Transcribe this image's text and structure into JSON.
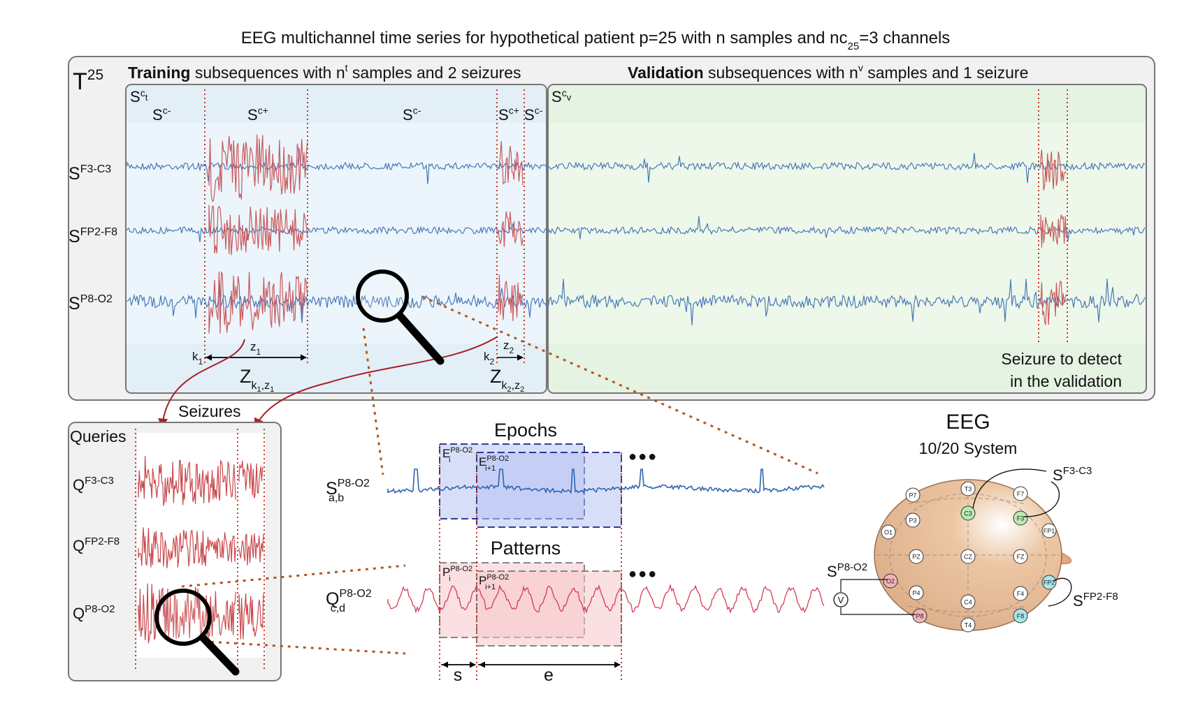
{
  "title": "EEG multichannel time series for hypothetical patient p=25 with n samples and nc",
  "title_sub": "25",
  "title_tail": "=3 channels",
  "panel_label": "T",
  "panel_label_sup": "25",
  "training": {
    "bold": "Training",
    "text": " subsequences with n",
    "sup": "t",
    "text2": " samples and 2 seizures",
    "s_label": "S",
    "s_sup": "c",
    "s_sup2": "t"
  },
  "validation": {
    "bold": "Validation",
    "text": " subsequences with n",
    "sup": "v",
    "text2": " samples and 1 seizure",
    "s_label": "S",
    "s_sup": "c",
    "s_sup2": "v",
    "note_line1": "Seizure to detect",
    "note_line2": "in the validation"
  },
  "segments": [
    {
      "base": "S",
      "sup": "c-"
    },
    {
      "base": "S",
      "sup": "c+"
    },
    {
      "base": "S",
      "sup": "c-"
    },
    {
      "base": "S",
      "sup": "c+"
    },
    {
      "base": "S",
      "sup": "c-"
    }
  ],
  "channels": [
    {
      "base": "S",
      "sup": "F3-C3"
    },
    {
      "base": "S",
      "sup": "FP2-F8"
    },
    {
      "base": "S",
      "sup": "P8-O2"
    }
  ],
  "markers": {
    "k1": "k",
    "k1_sub": "1",
    "z1": "z",
    "z1_sub": "1",
    "k2": "k",
    "k2_sub": "2",
    "z2": "z",
    "z2_sub": "2",
    "Z1": "Z",
    "Z1_sub": "k",
    "Z1_sub_a": "1",
    "Z1_sub_b": ",z",
    "Z1_sub_c": "1",
    "Z2": "Z",
    "Z2_sub": "k",
    "Z2_sub_a": "2",
    "Z2_sub_b": ",z",
    "Z2_sub_c": "2"
  },
  "seizures_label": "Seizures",
  "queries": {
    "title": "Queries",
    "channels": [
      {
        "base": "Q",
        "sup": "F3-C3"
      },
      {
        "base": "Q",
        "sup": "FP2-F8"
      },
      {
        "base": "Q",
        "sup": "P8-O2"
      }
    ]
  },
  "epochs": {
    "title": "Epochs",
    "series_base": "S",
    "series_sup": "P8-O2",
    "series_sub": "a,b",
    "e_i": "E",
    "e_i_sup": "P8-O2",
    "e_i_sub": "i",
    "e_i1": "E",
    "e_i1_sup": "P8-O2",
    "e_i1_sub": "i+1",
    "ellipsis": "●●●"
  },
  "patterns": {
    "title": "Patterns",
    "series_base": "Q",
    "series_sup": "P8-O2",
    "series_sub": "c,d",
    "p_i": "P",
    "p_i_sup": "P8-O2",
    "p_i_sub": "i",
    "p_i1": "P",
    "p_i1_sup": "P8-O2",
    "p_i1_sub": "i+1",
    "ellipsis": "●●●",
    "s_label": "s",
    "e_label": "e"
  },
  "eeg": {
    "title": "EEG",
    "subtitle": "10/20 System",
    "electrodes": [
      "T3",
      "F7",
      "P7",
      "C3",
      "F3",
      "FP1",
      "O1",
      "P3",
      "PZ",
      "CZ",
      "FZ",
      "O2",
      "P4",
      "C4",
      "F4",
      "FP2",
      "P8",
      "T4",
      "F8"
    ],
    "label_f3c3_base": "S",
    "label_f3c3_sup": "F3-C3",
    "label_fp2f8_base": "S",
    "label_fp2f8_sup": "FP2-F8",
    "label_p8o2_base": "S",
    "label_p8o2_sup": "P8-O2",
    "voltmeter": "V"
  },
  "colors": {
    "signal": "#4a78b8",
    "seizure": "#c9595c",
    "training_bg": "#e4f0f8",
    "validation_bg": "#e6f4e4",
    "panel_bg": "#f2f2f2",
    "marker": "#c0392b",
    "dots": "#b5561c",
    "epoch_fill": "#b7c3f2",
    "pattern_fill": "#f5c6cb",
    "head": "#e3b896",
    "c3": "#b9ebb0",
    "f3": "#b9ebb0",
    "fp2": "#a8e6ea",
    "f8": "#a8e6ea",
    "o2": "#f4b4b6",
    "p8": "#f4b4b6"
  }
}
